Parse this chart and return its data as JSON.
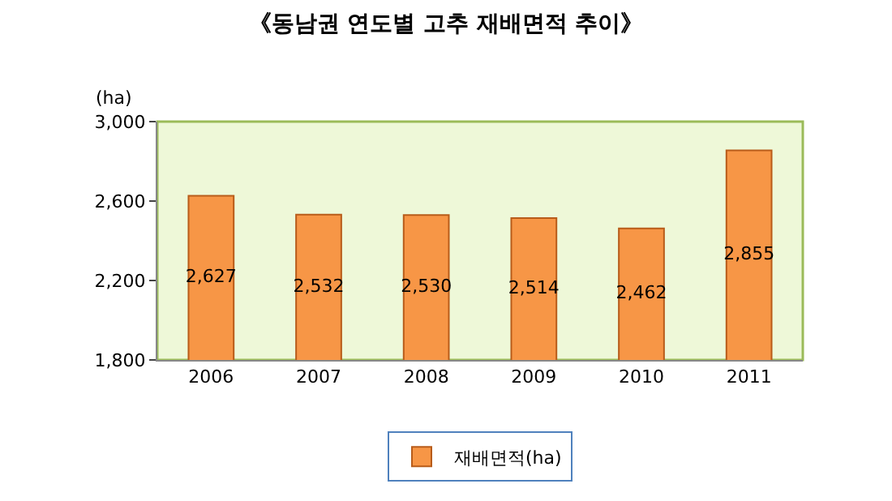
{
  "chart_data": {
    "type": "bar",
    "title": "《동남권 연도별 고추 재배면적 추이》",
    "ylabel": "(ha)",
    "categories": [
      "2006",
      "2007",
      "2008",
      "2009",
      "2010",
      "2011"
    ],
    "series": [
      {
        "name": "재배면적(ha)",
        "color": "#f79646",
        "values": [
          2627,
          2532,
          2530,
          2514,
          2462,
          2855
        ],
        "value_labels": [
          "2,627",
          "2,532",
          "2,530",
          "2,514",
          "2,462",
          "2,855"
        ]
      }
    ],
    "ylim": [
      1800,
      3000
    ],
    "yticks": [
      {
        "value": 1800,
        "label": "1,800"
      },
      {
        "value": 2200,
        "label": "2,200"
      },
      {
        "value": 2600,
        "label": "2,600"
      },
      {
        "value": 3000,
        "label": "3,000"
      }
    ],
    "grid": false,
    "legend": "bottom"
  }
}
